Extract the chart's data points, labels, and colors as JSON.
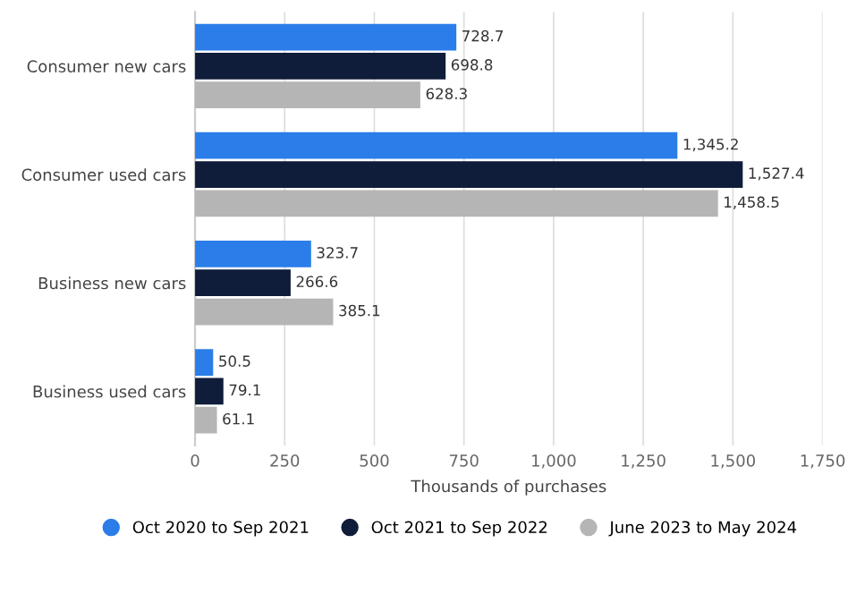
{
  "chart_data": {
    "type": "bar",
    "orientation": "horizontal",
    "xlabel": "Thousands of purchases",
    "categories": [
      "Consumer new cars",
      "Consumer used cars",
      "Business new cars",
      "Business used cars"
    ],
    "series": [
      {
        "name": "Oct 2020 to Sep 2021",
        "color": "#2b7de9",
        "values": [
          728.7,
          1345.2,
          323.7,
          50.5
        ],
        "value_labels": [
          "728.7",
          "1,345.2",
          "323.7",
          "50.5"
        ]
      },
      {
        "name": "Oct 2021 to Sep 2022",
        "color": "#0f1d3a",
        "values": [
          698.8,
          1527.4,
          266.6,
          79.1
        ],
        "value_labels": [
          "698.8",
          "1,527.4",
          "266.6",
          "79.1"
        ]
      },
      {
        "name": "June 2023 to May 2024",
        "color": "#b5b5b5",
        "values": [
          628.3,
          1458.5,
          385.1,
          61.1
        ],
        "value_labels": [
          "628.3",
          "1,458.5",
          "385.1",
          "61.1"
        ]
      }
    ],
    "xlim": [
      0,
      1750
    ],
    "xticks": [
      0,
      250,
      500,
      750,
      {
        "value": 1000,
        "label": "1,000"
      },
      {
        "value": 1250,
        "label": "1,250"
      },
      {
        "value": 1500,
        "label": "1,500"
      },
      {
        "value": 1750,
        "label": "1,750"
      }
    ],
    "grid": "x",
    "legend": "bottom"
  }
}
